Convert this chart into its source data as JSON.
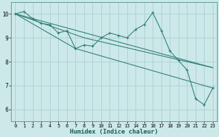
{
  "title": "",
  "xlabel": "Humidex (Indice chaleur)",
  "ylabel": "",
  "background_color": "#cce8e8",
  "line_color": "#2d7d74",
  "grid_color": "#aacfcf",
  "xlim": [
    -0.5,
    23.5
  ],
  "ylim": [
    5.5,
    10.5
  ],
  "xticks": [
    0,
    1,
    2,
    3,
    4,
    5,
    6,
    7,
    8,
    9,
    10,
    11,
    12,
    13,
    14,
    15,
    16,
    17,
    18,
    19,
    20,
    21,
    22,
    23
  ],
  "yticks": [
    6,
    7,
    8,
    9,
    10
  ],
  "line1_x": [
    0,
    1,
    2,
    3,
    4,
    5,
    6,
    7,
    8,
    9,
    10,
    11,
    12,
    13,
    14,
    15,
    16,
    17,
    18,
    19,
    20,
    21,
    22,
    23
  ],
  "line1_y": [
    10.0,
    10.1,
    9.8,
    9.6,
    9.55,
    9.2,
    9.3,
    8.55,
    8.7,
    8.65,
    9.0,
    9.2,
    9.1,
    9.0,
    9.35,
    9.55,
    10.05,
    9.3,
    8.45,
    8.05,
    7.65,
    6.45,
    6.2,
    6.9
  ],
  "line2_x": [
    0,
    23
  ],
  "line2_y": [
    10.0,
    7.75
  ],
  "line3_x": [
    0,
    8,
    23
  ],
  "line3_y": [
    10.0,
    9.0,
    7.75
  ],
  "line4_x": [
    0,
    7,
    23
  ],
  "line4_y": [
    10.0,
    8.55,
    6.9
  ],
  "xlabel_fontsize": 6.5,
  "tick_fontsize": 5.0
}
